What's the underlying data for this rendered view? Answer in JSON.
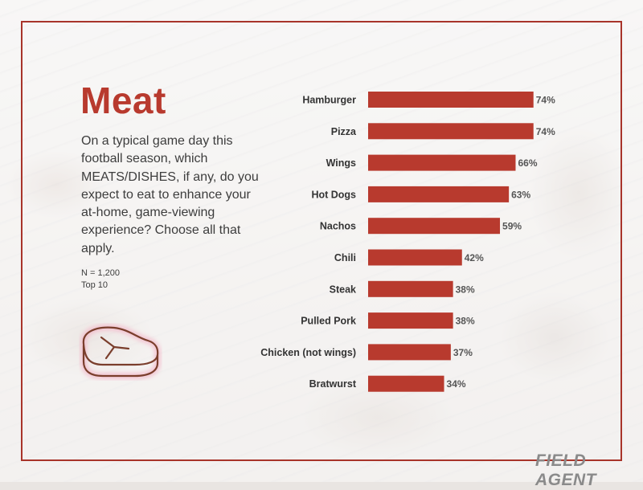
{
  "title": "Meat",
  "question": "On a typical game day this football season, which MEATS/DISHES, if any, do you expect to eat to enhance your at-home, game-viewing experience? Choose all that apply.",
  "sample_note": "N = 1,200",
  "top_note": "Top 10",
  "logo_text": "FIELD AGENT",
  "icon": "steak-icon",
  "colors": {
    "bar": "#b83a2e",
    "title": "#b83a2e",
    "frame": "#a8342a"
  },
  "chart_data": {
    "type": "bar",
    "orientation": "horizontal",
    "categories": [
      "Hamburger",
      "Pizza",
      "Wings",
      "Hot Dogs",
      "Nachos",
      "Chili",
      "Steak",
      "Pulled Pork",
      "Chicken (not wings)",
      "Bratwurst"
    ],
    "values": [
      74,
      74,
      66,
      63,
      59,
      42,
      38,
      38,
      37,
      34
    ],
    "value_labels": [
      "74%",
      "74%",
      "66%",
      "63%",
      "59%",
      "42%",
      "38%",
      "38%",
      "37%",
      "34%"
    ],
    "xlim": [
      0,
      100
    ],
    "grid": false
  }
}
